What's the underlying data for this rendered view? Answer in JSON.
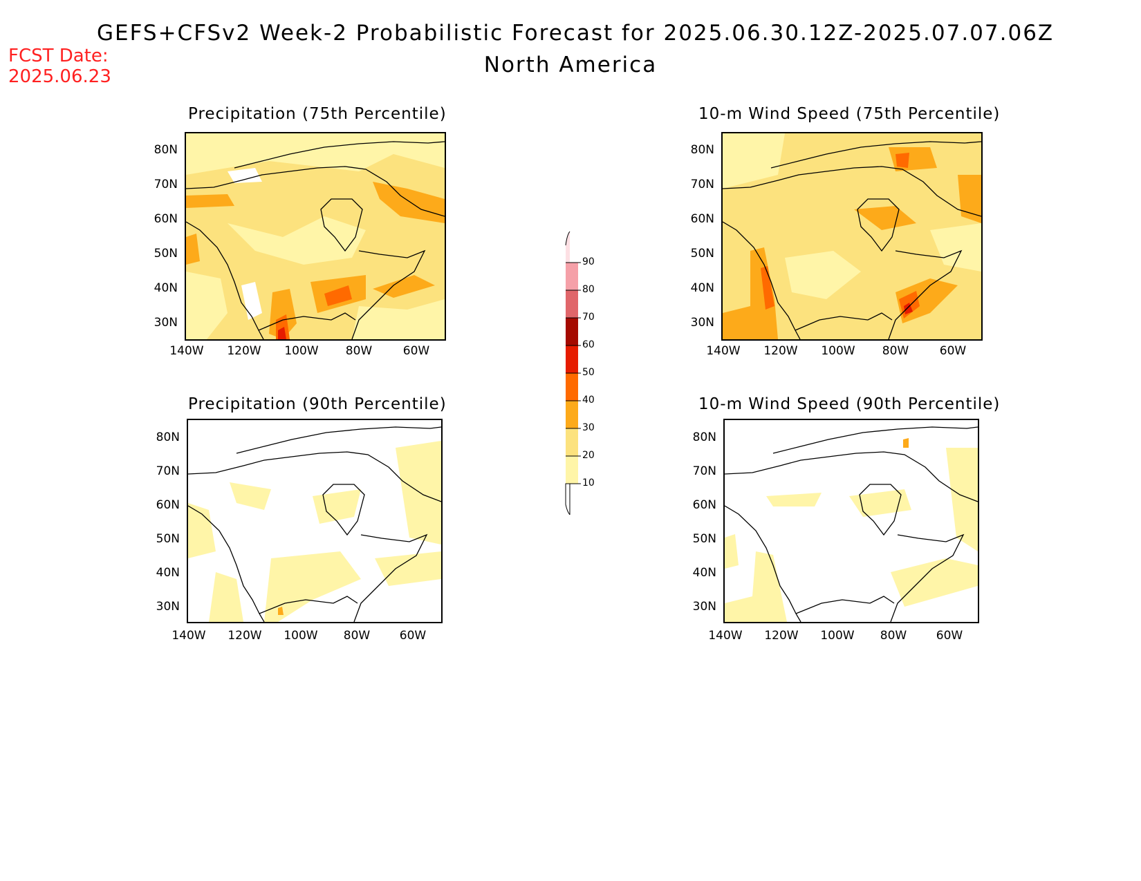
{
  "header": {
    "title": "GEFS+CFSv2 Week-2 Probabilistic Forecast for 2025.06.30.12Z-2025.07.07.06Z",
    "subtitle": "North America",
    "fcst_line1": "FCST Date:",
    "fcst_line2": "2025.06.23"
  },
  "colors": {
    "c10": "#fff5a8",
    "c20": "#fce27e",
    "c30": "#fdaa1a",
    "c40": "#ff6a00",
    "c50": "#e61c00",
    "c60": "#a50a00",
    "c70": "#e0666a",
    "c80": "#f5a0a8",
    "c90": "#fde0e4"
  },
  "panels": [
    {
      "id": "precip75",
      "title": "Precipitation (75th Percentile)"
    },
    {
      "id": "wind75",
      "title": "10-m Wind Speed (75th Percentile)"
    },
    {
      "id": "precip90",
      "title": "Precipitation (90th Percentile)"
    },
    {
      "id": "wind90",
      "title": "10-m Wind Speed (90th Percentile)"
    }
  ],
  "axes": {
    "lat_labels": [
      "80N",
      "70N",
      "60N",
      "50N",
      "40N",
      "30N"
    ],
    "lon_labels": [
      "140W",
      "120W",
      "100W",
      "80W",
      "60W"
    ]
  },
  "colorbar": {
    "labels": [
      "90",
      "80",
      "70",
      "60",
      "50",
      "40",
      "30",
      "20",
      "10"
    ]
  }
}
